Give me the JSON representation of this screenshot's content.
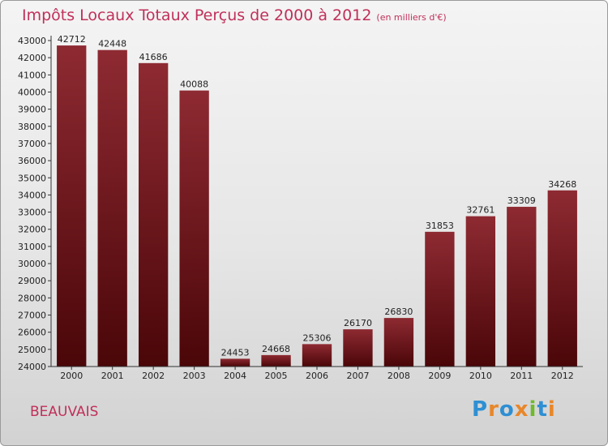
{
  "chart_data": {
    "type": "bar",
    "title": "Impôts Locaux Totaux Perçus de 2000 à 2012",
    "subtitle": "(en milliers d'€)",
    "categories": [
      "2000",
      "2001",
      "2002",
      "2003",
      "2004",
      "2005",
      "2006",
      "2007",
      "2008",
      "2009",
      "2010",
      "2011",
      "2012"
    ],
    "values": [
      42712,
      42448,
      41686,
      40088,
      24453,
      24668,
      25306,
      26170,
      26830,
      31853,
      32761,
      33309,
      34268
    ],
    "ylim": [
      24000,
      43000
    ],
    "ytick_step": 1000,
    "grid": false,
    "bar_color": "#7a1a1e"
  },
  "footer": {
    "commune": "BEAUVAIS",
    "logo_letters": [
      {
        "char": "P",
        "color": "#2e8fd3"
      },
      {
        "char": "r",
        "color": "#e8872a"
      },
      {
        "char": "o",
        "color": "#2e8fd3"
      },
      {
        "char": "x",
        "color": "#e8872a"
      },
      {
        "char": "i",
        "color": "#6fba2c"
      },
      {
        "char": "t",
        "color": "#2e8fd3"
      },
      {
        "char": "i",
        "color": "#e8872a"
      }
    ]
  }
}
